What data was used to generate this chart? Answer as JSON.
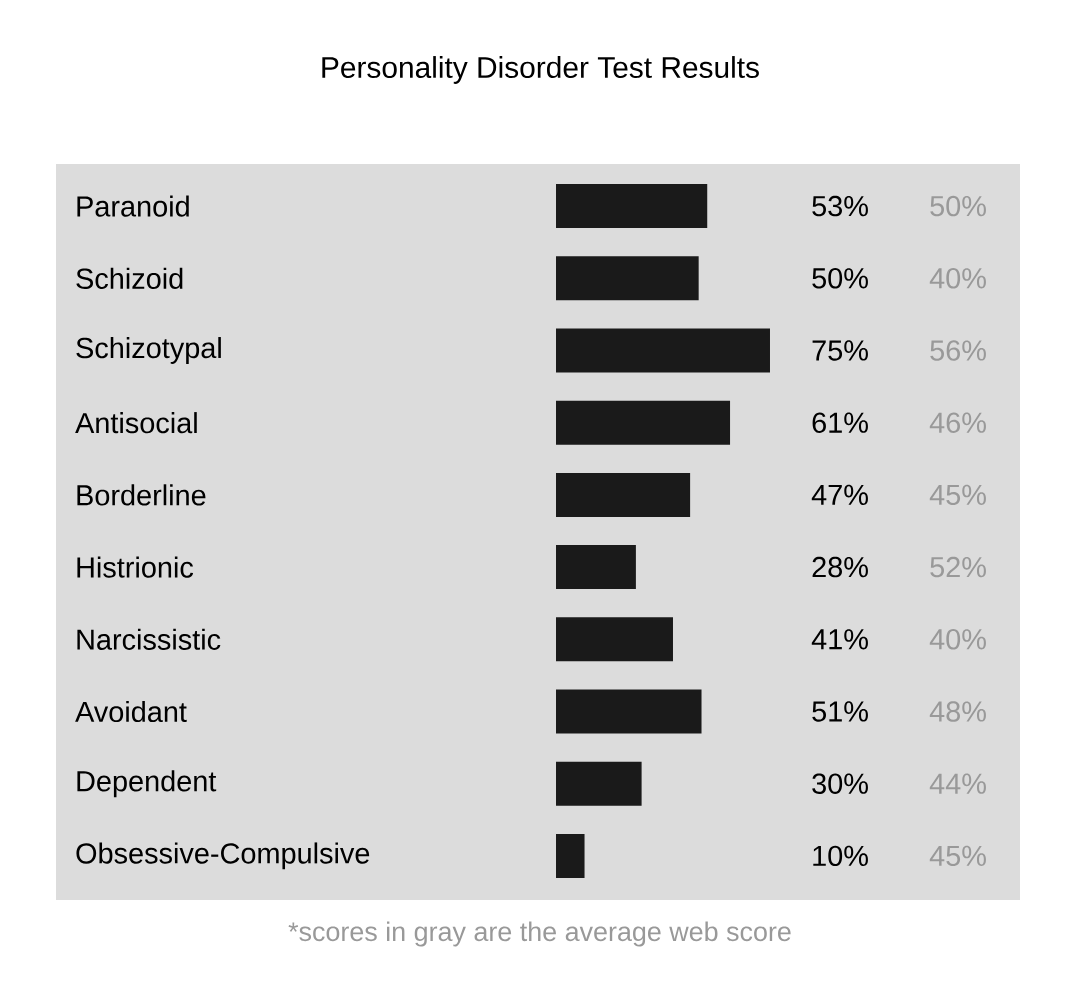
{
  "chart_data": {
    "type": "bar",
    "orientation": "horizontal",
    "title": "Personality Disorder Test Results",
    "categories": [
      "Paranoid",
      "Schizoid",
      "Schizotypal",
      "Antisocial",
      "Borderline",
      "Histrionic",
      "Narcissistic",
      "Avoidant",
      "Dependent",
      "Obsessive-Compulsive"
    ],
    "values": [
      53,
      50,
      75,
      61,
      47,
      28,
      41,
      51,
      30,
      10
    ],
    "color": "#1a1a1a",
    "value_labels": [
      "53%",
      "50%",
      "75%",
      "61%",
      "47%",
      "28%",
      "41%",
      "51%",
      "30%",
      "10%"
    ],
    "annotations": [
      "50%",
      "40%",
      "56%",
      "46%",
      "45%",
      "52%",
      "40%",
      "48%",
      "44%",
      "45%",
      "*scores in gray are the average web score"
    ]
  }
}
